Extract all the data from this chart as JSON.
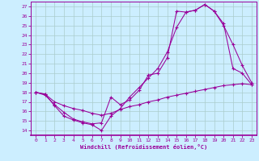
{
  "xlabel": "Windchill (Refroidissement éolien,°C)",
  "xlim": [
    -0.5,
    23.5
  ],
  "ylim": [
    13.5,
    27.5
  ],
  "yticks": [
    14,
    15,
    16,
    17,
    18,
    19,
    20,
    21,
    22,
    23,
    24,
    25,
    26,
    27
  ],
  "xticks": [
    0,
    1,
    2,
    3,
    4,
    5,
    6,
    7,
    8,
    9,
    10,
    11,
    12,
    13,
    14,
    15,
    16,
    17,
    18,
    19,
    20,
    21,
    22,
    23
  ],
  "line_color": "#990099",
  "bg_color": "#cceeff",
  "grid_color": "#aacccc",
  "line1_x": [
    0,
    1,
    2,
    3,
    4,
    5,
    6,
    7,
    8,
    9,
    10,
    11,
    12,
    13,
    14,
    15,
    16,
    17,
    18,
    19,
    20,
    21,
    22,
    23
  ],
  "line1_y": [
    18.0,
    17.8,
    16.6,
    15.5,
    15.1,
    14.8,
    14.6,
    14.0,
    15.5,
    16.3,
    17.5,
    18.5,
    19.5,
    20.5,
    22.2,
    24.8,
    26.4,
    26.6,
    27.2,
    26.5,
    25.0,
    23.0,
    20.8,
    19.0
  ],
  "line2_x": [
    0,
    1,
    2,
    3,
    4,
    5,
    6,
    7,
    8,
    9,
    10,
    11,
    12,
    13,
    14,
    15,
    16,
    17,
    18,
    19,
    20,
    21,
    22,
    23
  ],
  "line2_y": [
    18.0,
    17.7,
    16.7,
    15.9,
    15.2,
    14.9,
    14.7,
    14.8,
    17.5,
    16.7,
    17.2,
    18.2,
    19.8,
    20.0,
    21.6,
    26.5,
    26.4,
    26.6,
    27.2,
    26.5,
    25.2,
    20.5,
    20.0,
    18.8
  ],
  "line3_x": [
    0,
    1,
    2,
    3,
    4,
    5,
    6,
    7,
    8,
    9,
    10,
    11,
    12,
    13,
    14,
    15,
    16,
    17,
    18,
    19,
    20,
    21,
    22,
    23
  ],
  "line3_y": [
    18.0,
    17.8,
    17.0,
    16.6,
    16.3,
    16.1,
    15.8,
    15.6,
    15.8,
    16.2,
    16.5,
    16.7,
    17.0,
    17.2,
    17.5,
    17.7,
    17.9,
    18.1,
    18.3,
    18.5,
    18.7,
    18.8,
    18.9,
    18.8
  ]
}
